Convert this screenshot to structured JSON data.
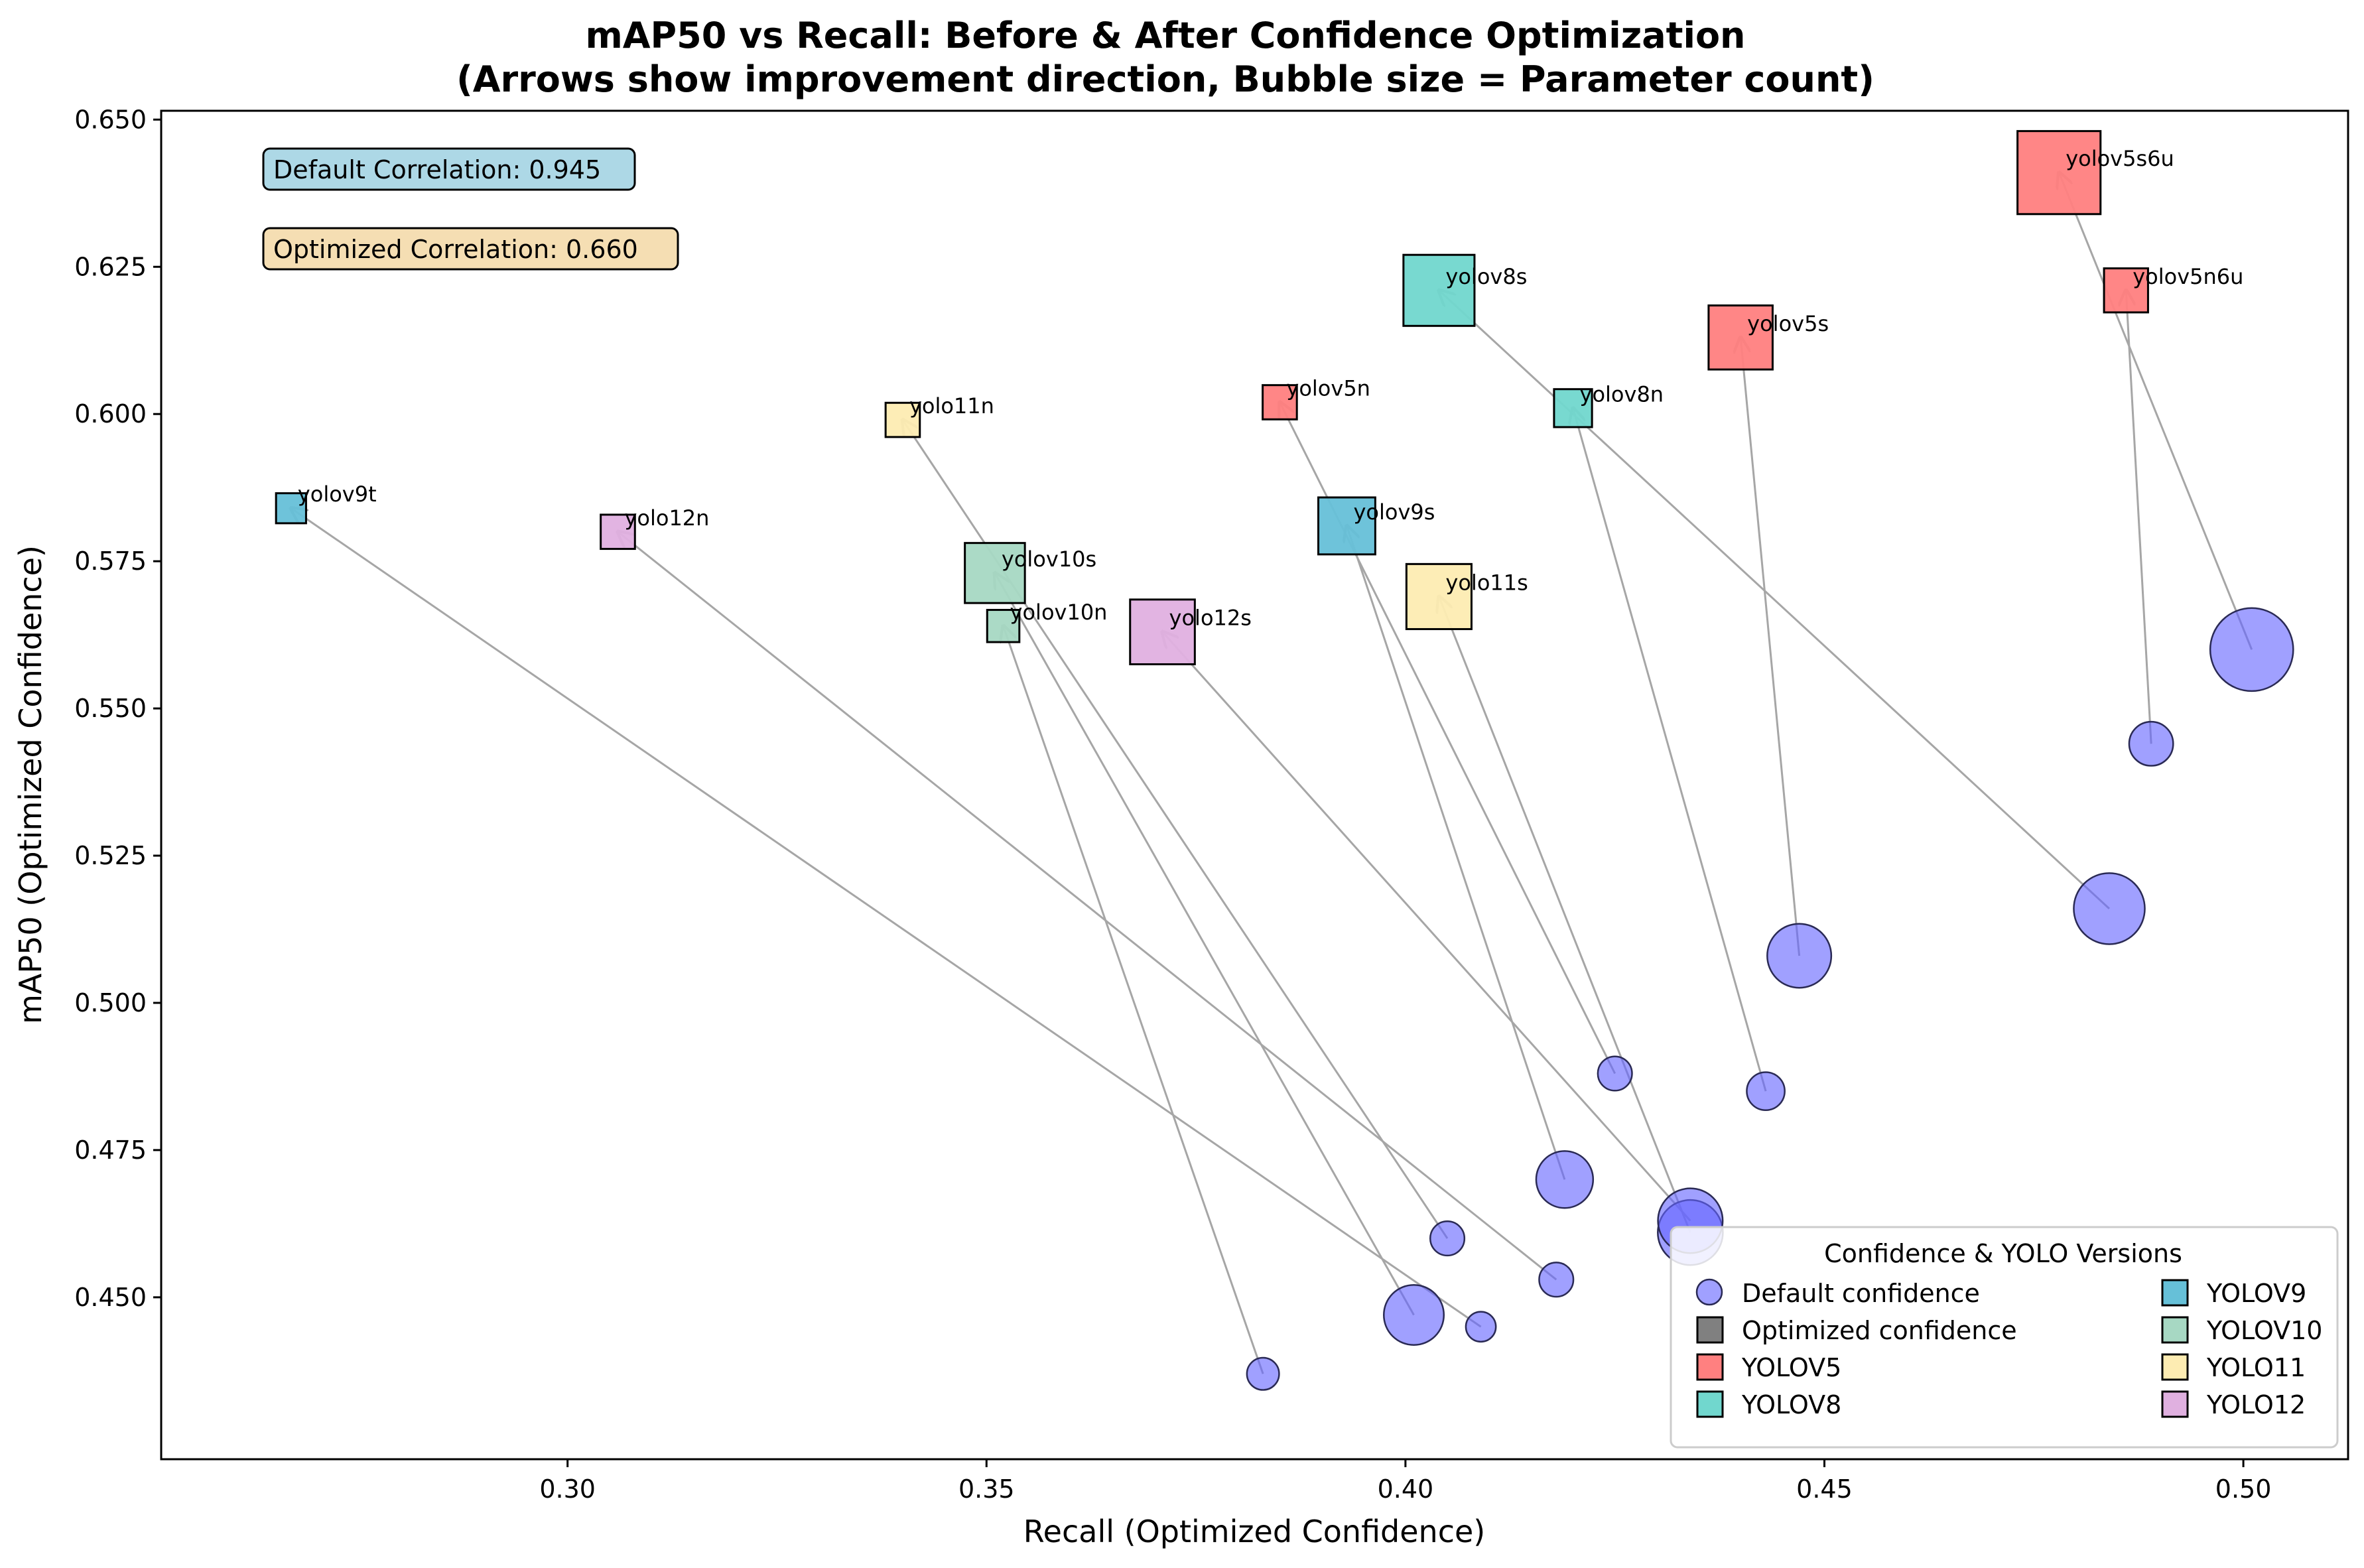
{
  "chart_data": {
    "type": "scatter",
    "title": "mAP50 vs Recall: Before & After Confidence Optimization",
    "subtitle": "(Arrows show improvement direction, Bubble size = Parameter count)",
    "xlabel": "Recall (Optimized Confidence)",
    "ylabel": "mAP50 (Optimized Confidence)",
    "xlim": [
      0.2515,
      0.5125
    ],
    "ylim": [
      0.4225,
      0.6515
    ],
    "xticks": [
      0.3,
      0.35,
      0.4,
      0.45,
      0.5
    ],
    "yticks": [
      0.45,
      0.475,
      0.5,
      0.525,
      0.55,
      0.575,
      0.6,
      0.625,
      0.65
    ],
    "grid": false,
    "annotations": [
      "Default Correlation: 0.945",
      "Optimized Correlation: 0.660"
    ],
    "legend": {
      "title": "Confidence & YOLO Versions",
      "placement": "lower-right",
      "entries": [
        {
          "label": "Default confidence",
          "marker": "circle",
          "color": "#6666ff"
        },
        {
          "label": "Optimized confidence",
          "marker": "square",
          "color": "#808080"
        },
        {
          "label": "YOLOV5",
          "marker": "square",
          "color": "#ff8080"
        },
        {
          "label": "YOLOV8",
          "marker": "square",
          "color": "#71d7ce"
        },
        {
          "label": "YOLOV9",
          "marker": "square",
          "color": "#66c0d8"
        },
        {
          "label": "YOLOV10",
          "marker": "square",
          "color": "#a7d8c3"
        },
        {
          "label": "YOLO11",
          "marker": "square",
          "color": "#fdecb2"
        },
        {
          "label": "YOLO12",
          "marker": "square",
          "color": "#e0b0e0"
        }
      ]
    },
    "default_color": "#6666ff",
    "version_colors": {
      "YOLOV5": "#ff8080",
      "YOLOV8": "#71d7ce",
      "YOLOV9": "#66c0d8",
      "YOLOV10": "#a7d8c3",
      "YOLO11": "#fdecb2",
      "YOLO12": "#e0b0e0"
    },
    "points": [
      {
        "model": "yolov5s6u",
        "version": "YOLOV5",
        "params": 15.3,
        "default": {
          "recall": 0.501,
          "map50": 0.56
        },
        "optimized": {
          "recall": 0.478,
          "map50": 0.641
        }
      },
      {
        "model": "yolov5n6u",
        "version": "YOLOV5",
        "params": 4.3,
        "default": {
          "recall": 0.489,
          "map50": 0.544
        },
        "optimized": {
          "recall": 0.486,
          "map50": 0.621
        }
      },
      {
        "model": "yolov5s",
        "version": "YOLOV5",
        "params": 9.1,
        "default": {
          "recall": 0.447,
          "map50": 0.508
        },
        "optimized": {
          "recall": 0.44,
          "map50": 0.613
        }
      },
      {
        "model": "yolov5n",
        "version": "YOLOV5",
        "params": 2.6,
        "default": {
          "recall": 0.425,
          "map50": 0.488
        },
        "optimized": {
          "recall": 0.385,
          "map50": 0.602
        }
      },
      {
        "model": "yolov8s",
        "version": "YOLOV8",
        "params": 11.2,
        "default": {
          "recall": 0.484,
          "map50": 0.516
        },
        "optimized": {
          "recall": 0.404,
          "map50": 0.621
        }
      },
      {
        "model": "yolov8n",
        "version": "YOLOV8",
        "params": 3.2,
        "default": {
          "recall": 0.443,
          "map50": 0.485
        },
        "optimized": {
          "recall": 0.42,
          "map50": 0.601
        }
      },
      {
        "model": "yolov9t",
        "version": "YOLOV9",
        "params": 2.0,
        "default": {
          "recall": 0.409,
          "map50": 0.445
        },
        "optimized": {
          "recall": 0.267,
          "map50": 0.584
        }
      },
      {
        "model": "yolov9s",
        "version": "YOLOV9",
        "params": 7.2,
        "default": {
          "recall": 0.419,
          "map50": 0.47
        },
        "optimized": {
          "recall": 0.393,
          "map50": 0.581
        }
      },
      {
        "model": "yolov10s",
        "version": "YOLOV10",
        "params": 8.0,
        "default": {
          "recall": 0.401,
          "map50": 0.447
        },
        "optimized": {
          "recall": 0.351,
          "map50": 0.573
        }
      },
      {
        "model": "yolov10n",
        "version": "YOLOV10",
        "params": 2.3,
        "default": {
          "recall": 0.383,
          "map50": 0.437
        },
        "optimized": {
          "recall": 0.352,
          "map50": 0.564
        }
      },
      {
        "model": "yolo11n",
        "version": "YOLO11",
        "params": 2.6,
        "default": {
          "recall": 0.405,
          "map50": 0.46
        },
        "optimized": {
          "recall": 0.34,
          "map50": 0.599
        }
      },
      {
        "model": "yolo11s",
        "version": "YOLO11",
        "params": 9.4,
        "default": {
          "recall": 0.434,
          "map50": 0.461
        },
        "optimized": {
          "recall": 0.404,
          "map50": 0.569
        }
      },
      {
        "model": "yolo12n",
        "version": "YOLO12",
        "params": 2.6,
        "default": {
          "recall": 0.418,
          "map50": 0.453
        },
        "optimized": {
          "recall": 0.306,
          "map50": 0.58
        }
      },
      {
        "model": "yolo12s",
        "version": "YOLO12",
        "params": 9.3,
        "default": {
          "recall": 0.434,
          "map50": 0.463
        },
        "optimized": {
          "recall": 0.371,
          "map50": 0.563
        }
      }
    ]
  }
}
